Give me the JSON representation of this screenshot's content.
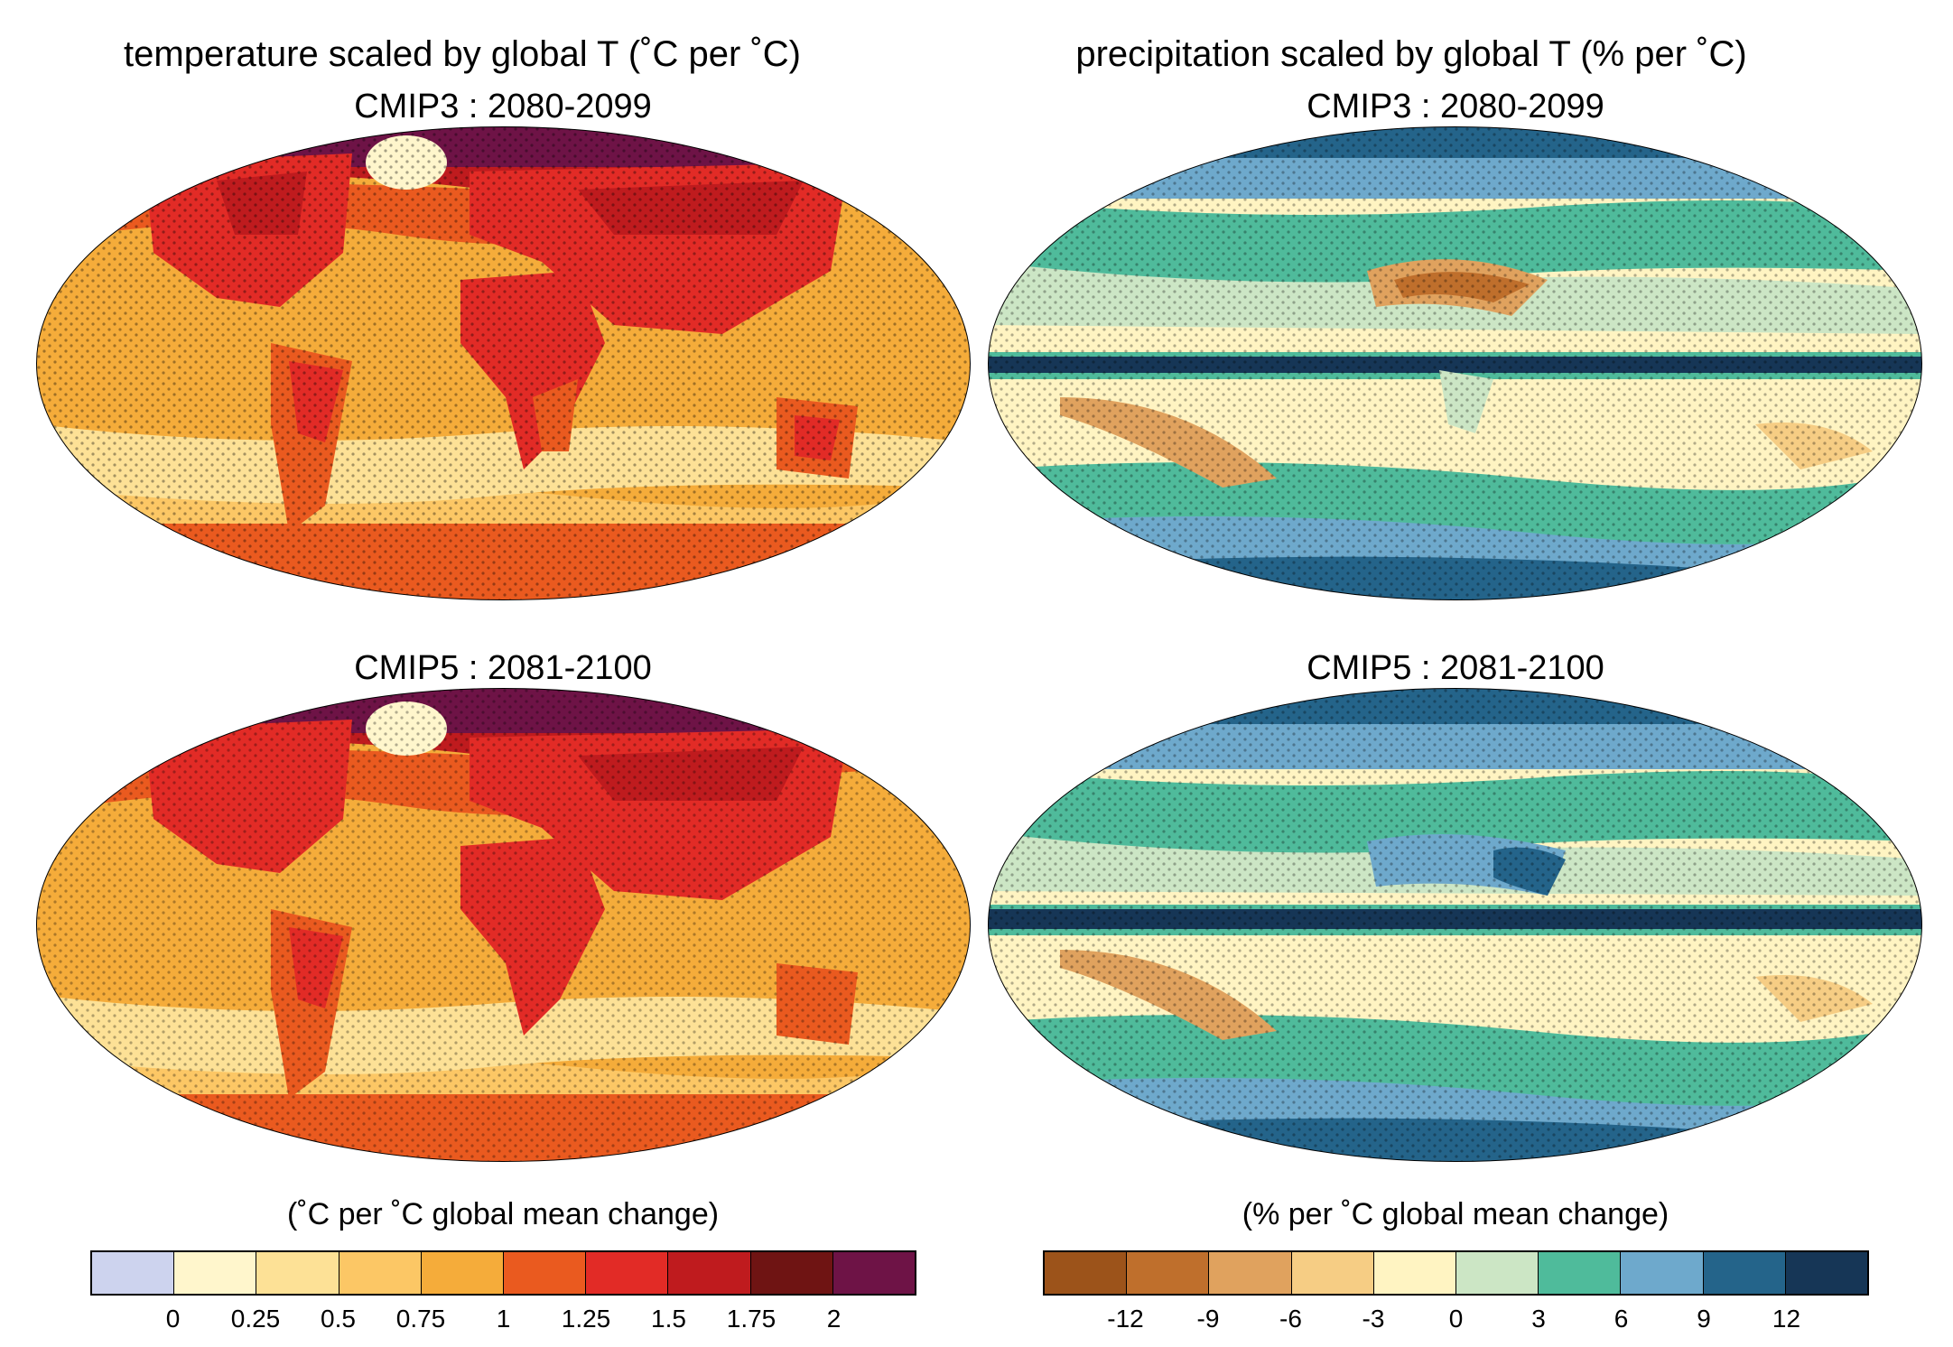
{
  "titles": {
    "temperature": "temperature scaled by global T (˚C per ˚C)",
    "precipitation": "precipitation scaled by global T (% per ˚C)"
  },
  "panels": {
    "temp_cmip3": "CMIP3 : 2080-2099",
    "precip_cmip3": "CMIP3 : 2080-2099",
    "temp_cmip5": "CMIP5 : 2081-2100",
    "precip_cmip5": "CMIP5 : 2081-2100"
  },
  "legends": {
    "temperature": {
      "label": "(˚C per ˚C global mean change)",
      "colors": [
        "#cdd3ee",
        "#fff6cc",
        "#fde196",
        "#fcc765",
        "#f5ac3a",
        "#ea5a1f",
        "#e22b26",
        "#bf1b1e",
        "#6f1413",
        "#6e1346"
      ],
      "ticks": [
        "0",
        "0.25",
        "0.5",
        "0.75",
        "1",
        "1.25",
        "1.5",
        "1.75",
        "2"
      ]
    },
    "precipitation": {
      "label": "(% per ˚C global mean change)",
      "colors": [
        "#9c531a",
        "#bf6f2c",
        "#e0a25e",
        "#f6cd84",
        "#fff4c2",
        "#cce6c5",
        "#4fbb9b",
        "#6ea9cc",
        "#24648a",
        "#163656"
      ],
      "ticks": [
        "-12",
        "-9",
        "-6",
        "-3",
        "0",
        "3",
        "6",
        "9",
        "12"
      ]
    }
  }
}
